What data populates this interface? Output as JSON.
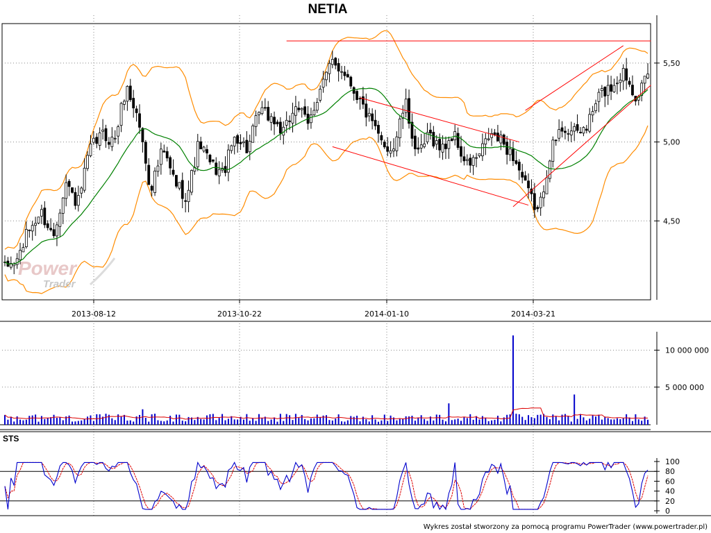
{
  "chart_data": [
    {
      "panel": "price",
      "type": "candlestick",
      "title": "NETIA",
      "x_tick_labels": [
        "2013-08-12",
        "2013-10-22",
        "2014-01-10",
        "2014-03-21"
      ],
      "y_tick_labels": [
        "4,50",
        "5,00",
        "5,50"
      ],
      "ylim": [
        4.0,
        5.75
      ],
      "grid": true,
      "overlays": [
        "Bollinger Bands (orange)",
        "Moving average (green)",
        "Trend lines (red)"
      ],
      "close_anchors": [
        4.2,
        4.25,
        4.45,
        4.55,
        4.4,
        4.75,
        4.6,
        4.95,
        5.05,
        5.0,
        5.35,
        5.15,
        4.7,
        4.95,
        4.75,
        4.65,
        5.0,
        4.85,
        4.8,
        5.05,
        4.95,
        5.2,
        5.15,
        5.05,
        5.25,
        5.1,
        5.35,
        5.5,
        5.45,
        5.3,
        5.15,
        5.0,
        4.95,
        5.25,
        4.9,
        5.05,
        4.95,
        5.05,
        4.85,
        4.9,
        5.05,
        5.0,
        4.9,
        4.7,
        4.55,
        4.95,
        5.1,
        5.05,
        5.1,
        5.3,
        5.35,
        5.45,
        5.3,
        5.4
      ]
    },
    {
      "panel": "volume",
      "type": "bar",
      "y_tick_labels": [
        "5 000 000",
        "10 000 000"
      ],
      "ylim": [
        0,
        12500000
      ],
      "peak_values": [
        12000000,
        4000000,
        2800000,
        2000000
      ]
    },
    {
      "panel": "oscillator",
      "type": "line",
      "label": "STS",
      "y_tick_labels": [
        "0",
        "20",
        "40",
        "60",
        "80",
        "100"
      ],
      "ylim": [
        0,
        100
      ],
      "reference_levels": [
        20,
        80
      ],
      "series_colors": {
        "k": "#0000cc",
        "d": "#dd0000"
      }
    }
  ],
  "watermark": {
    "line1": "Power",
    "line2": "Trader"
  },
  "footer": "Wykres został stworzony za pomocą programu PowerTrader (www.powertrader.pl)",
  "colors": {
    "bull": "#ffffff",
    "bear": "#000000",
    "band": "#ff8c00",
    "ma": "#008000",
    "trend": "#ff0000",
    "volume": "#0000cc",
    "volume_avg": "#dd0000"
  }
}
